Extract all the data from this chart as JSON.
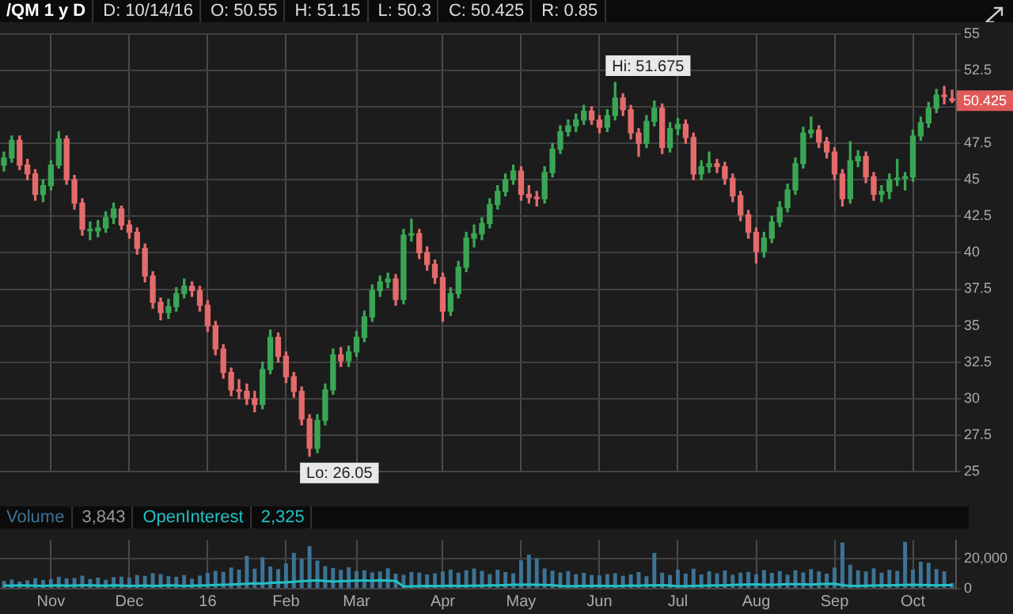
{
  "chart_data": [
    {
      "type": "candlestick",
      "title": "/QM 1 y D",
      "annotations": [
        "D: 10/14/16",
        "O: 50.55",
        "H: 51.15",
        "L: 50.3",
        "C: 50.425",
        "R: 0.85",
        "Hi: 51.675",
        "Lo: 26.05",
        {
          "text": "50.425",
          "y": 50.425
        }
      ],
      "categories": [
        null,
        null,
        null,
        null,
        null,
        null,
        null,
        null,
        null,
        null,
        null,
        null,
        null,
        null,
        null,
        null,
        null,
        null,
        null,
        null,
        null,
        null,
        null,
        null,
        null,
        null,
        null,
        null,
        null,
        null,
        null,
        null,
        null,
        null,
        null,
        null,
        null,
        null,
        null,
        null,
        null,
        null,
        null,
        null,
        null,
        null,
        null,
        null,
        null,
        null,
        null,
        null,
        null,
        null,
        null,
        null,
        null,
        null,
        null,
        null,
        null,
        null,
        null,
        null,
        null,
        null,
        null,
        null,
        null,
        null,
        null,
        null,
        null,
        null,
        null,
        null,
        null,
        null,
        null,
        null,
        null,
        null,
        null,
        null,
        null,
        null,
        null,
        null,
        null,
        null,
        null,
        null,
        null,
        null,
        null,
        null,
        null,
        null,
        null,
        null,
        null,
        null,
        null,
        null,
        null,
        null,
        null,
        null,
        null,
        null,
        null,
        null,
        null,
        null,
        null,
        null,
        null,
        null,
        null,
        null,
        null,
        null
      ],
      "ohlc": [
        [
          46.0,
          46.9,
          45.6,
          46.5
        ],
        [
          46.5,
          48.0,
          46.2,
          47.7
        ],
        [
          47.7,
          48.0,
          45.7,
          46.0
        ],
        [
          46.0,
          46.4,
          45.0,
          45.4
        ],
        [
          45.4,
          45.7,
          43.6,
          44.0
        ],
        [
          44.0,
          45.0,
          43.5,
          44.6
        ],
        [
          44.6,
          46.3,
          44.3,
          46.0
        ],
        [
          46.0,
          48.3,
          45.8,
          47.8
        ],
        [
          47.8,
          48.0,
          44.7,
          45.0
        ],
        [
          45.0,
          45.3,
          43.0,
          43.4
        ],
        [
          43.4,
          43.7,
          41.2,
          41.6
        ],
        [
          41.6,
          42.1,
          40.9,
          41.5
        ],
        [
          41.5,
          42.2,
          41.1,
          41.7
        ],
        [
          41.7,
          42.8,
          41.4,
          42.4
        ],
        [
          42.4,
          43.4,
          42.0,
          43.0
        ],
        [
          43.0,
          43.2,
          41.6,
          41.9
        ],
        [
          41.9,
          42.2,
          41.0,
          41.4
        ],
        [
          41.4,
          41.7,
          39.9,
          40.3
        ],
        [
          40.3,
          40.6,
          38.0,
          38.4
        ],
        [
          38.4,
          38.7,
          36.2,
          36.6
        ],
        [
          36.6,
          36.9,
          35.4,
          35.9
        ],
        [
          35.9,
          36.8,
          35.5,
          36.3
        ],
        [
          36.3,
          37.6,
          36.0,
          37.2
        ],
        [
          37.2,
          38.2,
          36.9,
          37.7
        ],
        [
          37.7,
          38.0,
          37.0,
          37.4
        ],
        [
          37.4,
          37.7,
          36.0,
          36.4
        ],
        [
          36.4,
          36.7,
          34.6,
          35.0
        ],
        [
          35.0,
          35.3,
          33.0,
          33.4
        ],
        [
          33.4,
          33.7,
          31.4,
          31.8
        ],
        [
          31.8,
          32.1,
          30.2,
          30.6
        ],
        [
          30.6,
          31.3,
          30.0,
          30.5
        ],
        [
          30.5,
          31.0,
          29.6,
          30.0
        ],
        [
          30.0,
          30.5,
          29.1,
          29.6
        ],
        [
          29.6,
          32.5,
          29.3,
          32.0
        ],
        [
          32.0,
          34.7,
          31.7,
          34.2
        ],
        [
          34.2,
          34.5,
          32.5,
          32.9
        ],
        [
          32.9,
          33.2,
          31.1,
          31.5
        ],
        [
          31.5,
          31.8,
          30.1,
          30.5
        ],
        [
          30.5,
          30.8,
          28.2,
          28.6
        ],
        [
          28.6,
          28.9,
          26.05,
          26.6
        ],
        [
          26.6,
          28.9,
          26.3,
          28.5
        ],
        [
          28.5,
          31.0,
          28.2,
          30.6
        ],
        [
          30.6,
          33.4,
          30.3,
          33.0
        ],
        [
          33.0,
          33.5,
          32.2,
          32.6
        ],
        [
          32.6,
          33.6,
          32.2,
          33.2
        ],
        [
          33.2,
          34.6,
          32.9,
          34.2
        ],
        [
          34.2,
          36.0,
          33.9,
          35.6
        ],
        [
          35.6,
          37.8,
          35.3,
          37.4
        ],
        [
          37.4,
          38.4,
          37.0,
          38.0
        ],
        [
          38.0,
          38.6,
          37.6,
          38.2
        ],
        [
          38.2,
          38.5,
          36.4,
          36.8
        ],
        [
          36.8,
          41.6,
          36.5,
          41.2
        ],
        [
          41.2,
          42.3,
          40.8,
          41.3
        ],
        [
          41.3,
          41.6,
          39.6,
          40.0
        ],
        [
          40.0,
          40.4,
          38.8,
          39.2
        ],
        [
          39.2,
          39.5,
          37.9,
          38.3
        ],
        [
          38.3,
          38.6,
          35.3,
          36.0
        ],
        [
          36.0,
          37.6,
          35.7,
          37.2
        ],
        [
          37.2,
          39.4,
          36.9,
          39.0
        ],
        [
          39.0,
          41.4,
          38.7,
          41.0
        ],
        [
          41.0,
          41.9,
          40.4,
          41.3
        ],
        [
          41.3,
          42.4,
          40.9,
          42.0
        ],
        [
          42.0,
          43.7,
          41.7,
          43.3
        ],
        [
          43.3,
          44.6,
          43.0,
          44.2
        ],
        [
          44.2,
          45.4,
          43.9,
          45.0
        ],
        [
          45.0,
          46.0,
          44.7,
          45.6
        ],
        [
          45.6,
          45.9,
          43.6,
          44.0
        ],
        [
          44.0,
          44.6,
          43.4,
          43.8
        ],
        [
          43.8,
          44.2,
          43.2,
          43.7
        ],
        [
          43.7,
          45.9,
          43.4,
          45.5
        ],
        [
          45.5,
          47.5,
          45.2,
          47.1
        ],
        [
          47.1,
          48.7,
          46.8,
          48.3
        ],
        [
          48.3,
          49.1,
          48.0,
          48.7
        ],
        [
          48.7,
          49.5,
          48.3,
          49.1
        ],
        [
          49.1,
          50.1,
          48.8,
          49.7
        ],
        [
          49.7,
          50.0,
          48.8,
          49.1
        ],
        [
          49.1,
          49.4,
          48.2,
          48.6
        ],
        [
          48.6,
          49.8,
          48.3,
          49.4
        ],
        [
          49.4,
          51.675,
          49.1,
          50.6
        ],
        [
          50.6,
          50.9,
          49.4,
          49.8
        ],
        [
          49.8,
          50.1,
          47.8,
          48.2
        ],
        [
          48.2,
          48.5,
          46.6,
          47.5
        ],
        [
          47.5,
          49.4,
          47.2,
          49.0
        ],
        [
          49.0,
          50.4,
          48.7,
          49.9
        ],
        [
          49.9,
          50.2,
          46.8,
          47.2
        ],
        [
          47.2,
          48.9,
          46.9,
          48.5
        ],
        [
          48.5,
          49.2,
          48.1,
          48.8
        ],
        [
          48.8,
          49.1,
          47.5,
          47.9
        ],
        [
          47.9,
          48.2,
          45.0,
          45.4
        ],
        [
          45.4,
          46.3,
          45.0,
          45.9
        ],
        [
          45.9,
          46.9,
          45.5,
          46.1
        ],
        [
          46.1,
          46.4,
          45.5,
          45.9
        ],
        [
          45.9,
          46.2,
          44.7,
          45.1
        ],
        [
          45.1,
          45.4,
          43.5,
          43.9
        ],
        [
          43.9,
          44.2,
          42.2,
          42.6
        ],
        [
          42.6,
          42.9,
          41.0,
          41.4
        ],
        [
          41.4,
          41.7,
          39.3,
          40.1
        ],
        [
          40.1,
          41.4,
          39.7,
          41.0
        ],
        [
          41.0,
          42.5,
          40.7,
          42.1
        ],
        [
          42.1,
          43.5,
          41.8,
          43.1
        ],
        [
          43.1,
          44.7,
          42.8,
          44.3
        ],
        [
          44.3,
          46.5,
          44.0,
          46.1
        ],
        [
          46.1,
          48.6,
          45.8,
          48.2
        ],
        [
          48.2,
          49.3,
          47.9,
          48.4
        ],
        [
          48.4,
          48.7,
          47.2,
          47.6
        ],
        [
          47.6,
          47.9,
          46.5,
          46.9
        ],
        [
          46.9,
          47.2,
          45.0,
          45.4
        ],
        [
          45.4,
          45.7,
          43.2,
          43.7
        ],
        [
          43.7,
          47.6,
          43.4,
          46.3
        ],
        [
          46.3,
          47.0,
          45.9,
          46.6
        ],
        [
          46.6,
          46.9,
          44.8,
          45.2
        ],
        [
          45.2,
          45.5,
          43.6,
          44.0
        ],
        [
          44.0,
          44.6,
          43.5,
          44.2
        ],
        [
          44.2,
          45.4,
          43.7,
          45.0
        ],
        [
          45.0,
          46.4,
          44.6,
          45.1
        ],
        [
          45.1,
          45.5,
          44.3,
          45.2
        ],
        [
          45.2,
          48.4,
          44.9,
          48.0
        ],
        [
          48.0,
          49.3,
          47.7,
          48.9
        ],
        [
          48.9,
          50.3,
          48.6,
          49.9
        ],
        [
          49.9,
          51.2,
          49.6,
          50.8
        ],
        [
          50.8,
          51.4,
          50.2,
          50.7
        ],
        [
          50.55,
          51.15,
          50.3,
          50.425
        ]
      ],
      "colors": [
        "#3aa655",
        "#3aa655",
        "#e36b6b",
        "#e36b6b",
        "#e36b6b",
        "#3aa655",
        "#3aa655",
        "#3aa655",
        "#e36b6b",
        "#e36b6b",
        "#e36b6b",
        "#3aa655",
        "#3aa655",
        "#3aa655",
        "#3aa655",
        "#e36b6b",
        "#e36b6b",
        "#e36b6b",
        "#e36b6b",
        "#e36b6b",
        "#e36b6b",
        "#3aa655",
        "#3aa655",
        "#3aa655",
        "#e36b6b",
        "#e36b6b",
        "#e36b6b",
        "#e36b6b",
        "#e36b6b",
        "#e36b6b",
        "#e36b6b",
        "#e36b6b",
        "#e36b6b",
        "#3aa655",
        "#3aa655",
        "#e36b6b",
        "#e36b6b",
        "#e36b6b",
        "#e36b6b",
        "#e36b6b",
        "#3aa655",
        "#3aa655",
        "#3aa655",
        "#e36b6b",
        "#3aa655",
        "#3aa655",
        "#3aa655",
        "#3aa655",
        "#3aa655",
        "#3aa655",
        "#e36b6b",
        "#3aa655",
        "#3aa655",
        "#e36b6b",
        "#e36b6b",
        "#e36b6b",
        "#e36b6b",
        "#3aa655",
        "#3aa655",
        "#3aa655",
        "#3aa655",
        "#3aa655",
        "#3aa655",
        "#3aa655",
        "#3aa655",
        "#3aa655",
        "#e36b6b",
        "#e36b6b",
        "#e36b6b",
        "#3aa655",
        "#3aa655",
        "#3aa655",
        "#3aa655",
        "#3aa655",
        "#3aa655",
        "#e36b6b",
        "#e36b6b",
        "#3aa655",
        "#3aa655",
        "#e36b6b",
        "#e36b6b",
        "#e36b6b",
        "#3aa655",
        "#3aa655",
        "#e36b6b",
        "#3aa655",
        "#3aa655",
        "#e36b6b",
        "#e36b6b",
        "#3aa655",
        "#3aa655",
        "#e36b6b",
        "#e36b6b",
        "#e36b6b",
        "#e36b6b",
        "#e36b6b",
        "#e36b6b",
        "#3aa655",
        "#3aa655",
        "#3aa655",
        "#3aa655",
        "#3aa655",
        "#3aa655",
        "#3aa655",
        "#e36b6b",
        "#e36b6b",
        "#e36b6b",
        "#e36b6b",
        "#3aa655",
        "#3aa655",
        "#e36b6b",
        "#e36b6b",
        "#3aa655",
        "#3aa655",
        "#3aa655",
        "#3aa655",
        "#3aa655",
        "#3aa655",
        "#3aa655",
        "#3aa655",
        "#e36b6b",
        "#e36b6b"
      ],
      "ylim": [
        25,
        55
      ],
      "yticks": [
        25,
        27.5,
        30,
        32.5,
        35,
        37.5,
        40,
        42.5,
        45,
        47.5,
        {
          "value": 50,
          "label": null
        },
        52.5,
        55
      ],
      "grid": true,
      "tick_labels": "y"
    },
    {
      "type": "bar",
      "categories": [
        null,
        null,
        null,
        null,
        null,
        null,
        "Nov",
        null,
        null,
        null,
        null,
        null,
        null,
        null,
        null,
        null,
        "Dec",
        null,
        null,
        null,
        null,
        null,
        null,
        null,
        null,
        null,
        "16",
        null,
        null,
        null,
        null,
        null,
        null,
        null,
        null,
        null,
        "Feb",
        null,
        null,
        null,
        null,
        null,
        null,
        null,
        null,
        "Mar",
        null,
        null,
        null,
        null,
        null,
        null,
        null,
        null,
        null,
        null,
        "Apr",
        null,
        null,
        null,
        null,
        null,
        null,
        null,
        null,
        null,
        "May",
        null,
        null,
        null,
        null,
        null,
        null,
        null,
        null,
        null,
        "Jun",
        null,
        null,
        null,
        null,
        null,
        null,
        null,
        null,
        null,
        "Jul",
        null,
        null,
        null,
        null,
        null,
        null,
        null,
        null,
        null,
        "Aug",
        null,
        null,
        null,
        null,
        null,
        null,
        null,
        null,
        null,
        "Sep",
        null,
        null,
        null,
        null,
        null,
        null,
        null,
        null,
        null,
        "Oct",
        null,
        null,
        null,
        null,
        null
      ],
      "series": [
        {
          "name": "Volume",
          "color": "#3d7396",
          "values": [
            5200,
            6100,
            4800,
            5600,
            7000,
            5900,
            6400,
            8000,
            6900,
            7200,
            8800,
            6500,
            7400,
            6000,
            7700,
            8100,
            7500,
            9200,
            8600,
            10400,
            9800,
            8300,
            7900,
            9100,
            6800,
            8700,
            10500,
            12000,
            11300,
            14200,
            12800,
            22000,
            13400,
            21000,
            14900,
            13100,
            16800,
            24000,
            20000,
            28500,
            18900,
            15200,
            13800,
            12600,
            14300,
            11800,
            12400,
            10900,
            11600,
            13700,
            10100,
            9300,
            11200,
            10800,
            9600,
            10300,
            11500,
            12900,
            10700,
            12300,
            13600,
            11900,
            9800,
            12700,
            11100,
            10400,
            19000,
            22800,
            20500,
            13500,
            12100,
            10900,
            11800,
            9700,
            10600,
            9100,
            8900,
            9800,
            10300,
            8600,
            9500,
            11200,
            8300,
            24000,
            10700,
            9200,
            12800,
            10100,
            13400,
            9600,
            11700,
            10400,
            12200,
            9300,
            10800,
            11300,
            9700,
            12500,
            10600,
            11800,
            9400,
            12400,
            10900,
            13200,
            11600,
            10100,
            14200,
            31000,
            16100,
            12300,
            11500,
            13700,
            10800,
            12600,
            11900,
            31400,
            12900,
            18000,
            17400,
            13100,
            11600,
            3843
          ]
        },
        {
          "name": "OpenInterest",
          "type": "line",
          "color": "#22c1c3",
          "values": [
            2100,
            2000,
            2200,
            2100,
            2000,
            1900,
            2100,
            2200,
            2000,
            2100,
            2300,
            2200,
            2100,
            2000,
            2200,
            2100,
            1900,
            2000,
            2100,
            1800,
            2000,
            2200,
            2100,
            1900,
            2000,
            2100,
            2300,
            2500,
            2600,
            2800,
            3000,
            3300,
            3600,
            3400,
            3800,
            4100,
            4300,
            4600,
            5000,
            5300,
            5600,
            5200,
            4800,
            5000,
            5200,
            5400,
            5500,
            5300,
            5600,
            5400,
            5200,
            1500,
            1600,
            1700,
            1800,
            1700,
            1900,
            2000,
            1800,
            1900,
            2100,
            2000,
            2200,
            2300,
            2400,
            2600,
            2700,
            2800,
            2600,
            2500,
            2400,
            1800,
            1600,
            1700,
            1800,
            1900,
            2000,
            1800,
            1700,
            1900,
            2100,
            2000,
            2200,
            2300,
            2400,
            2100,
            1600,
            1700,
            1900,
            2000,
            2100,
            2200,
            2300,
            2500,
            2600,
            2800,
            2900,
            2700,
            2600,
            2800,
            3000,
            3100,
            2900,
            2800,
            3000,
            3200,
            3300,
            2400,
            1800,
            1900,
            2000,
            2100,
            2200,
            2300,
            2400,
            2500,
            2600,
            2500,
            2400,
            2300,
            2400,
            2325
          ]
        }
      ],
      "annotations": [
        "3,843",
        "2,325"
      ],
      "ylim": [
        0,
        32500
      ],
      "yticks": [
        0,
        {
          "value": 20000,
          "label": "20,000"
        }
      ],
      "grid": true,
      "legend": "top left"
    }
  ]
}
